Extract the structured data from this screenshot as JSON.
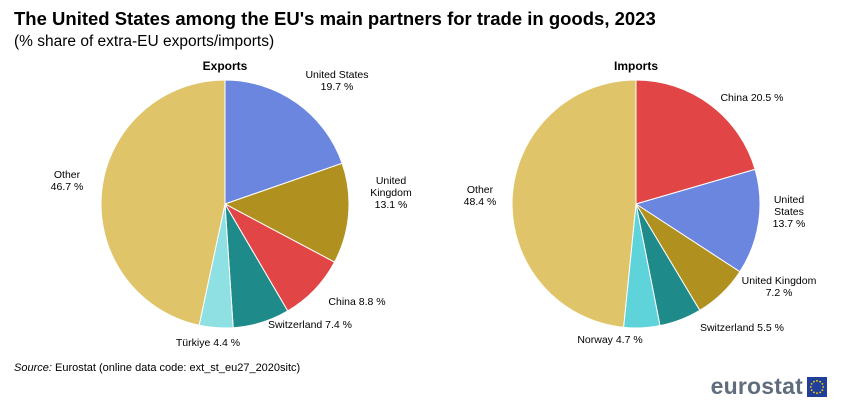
{
  "title": "The United States among the EU's main partners for trade in goods, 2023",
  "subtitle": "(% share of extra-EU exports/imports)",
  "source_label": "Source:",
  "source_text": "Eurostat (online data code: ext_st_eu27_2020sitc)",
  "logo_text": "eurostat",
  "chart_data": [
    {
      "type": "pie",
      "title": "Exports",
      "series": [
        {
          "name": "United States",
          "label_lines": [
            "United States",
            "19.7 %"
          ],
          "value": 19.7,
          "color": "#6b86de"
        },
        {
          "name": "United Kingdom",
          "label_lines": [
            "United",
            "Kingdom",
            "13.1 %"
          ],
          "value": 13.1,
          "color": "#b0901e"
        },
        {
          "name": "China",
          "label_lines": [
            "China 8.8 %"
          ],
          "value": 8.8,
          "color": "#e14545"
        },
        {
          "name": "Switzerland",
          "label_lines": [
            "Switzerland 7.4 %"
          ],
          "value": 7.4,
          "color": "#1f8a8a"
        },
        {
          "name": "Türkiye",
          "label_lines": [
            "Türkiye 4.4 %"
          ],
          "value": 4.4,
          "color": "#8fe0e3"
        },
        {
          "name": "Other",
          "label_lines": [
            "Other",
            "46.7 %"
          ],
          "value": 46.7,
          "color": "#e0c46a"
        }
      ]
    },
    {
      "type": "pie",
      "title": "Imports",
      "series": [
        {
          "name": "China",
          "label_lines": [
            "China 20.5 %"
          ],
          "value": 20.5,
          "color": "#e14545"
        },
        {
          "name": "United States",
          "label_lines": [
            "United",
            "States",
            "13.7 %"
          ],
          "value": 13.7,
          "color": "#6b86de"
        },
        {
          "name": "United Kingdom",
          "label_lines": [
            "United Kingdom",
            "7.2 %"
          ],
          "value": 7.2,
          "color": "#b0901e"
        },
        {
          "name": "Switzerland",
          "label_lines": [
            "Switzerland 5.5 %"
          ],
          "value": 5.5,
          "color": "#1f8a8a"
        },
        {
          "name": "Norway",
          "label_lines": [
            "Norway 4.7 %"
          ],
          "value": 4.7,
          "color": "#5ed3da"
        },
        {
          "name": "Other",
          "label_lines": [
            "Other",
            "48.4 %"
          ],
          "value": 48.4,
          "color": "#e0c46a"
        }
      ]
    }
  ]
}
